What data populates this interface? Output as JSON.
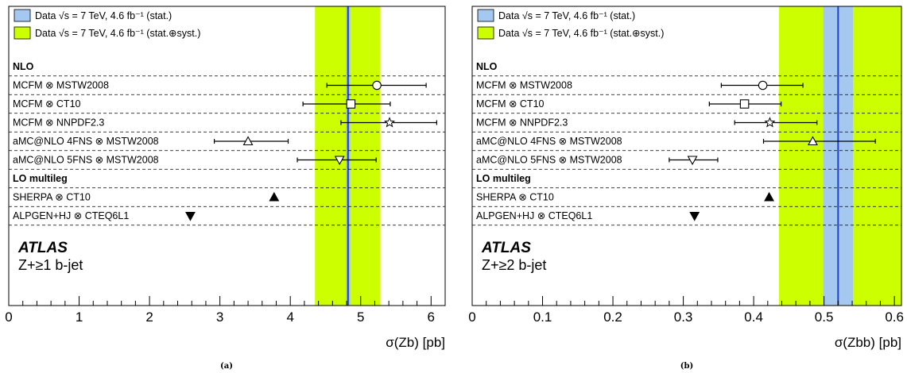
{
  "chart_data": [
    {
      "type": "scatter",
      "caption": "(a)",
      "xlabel": "σ(Zb) [pb]",
      "xlim": [
        0,
        6.2
      ],
      "xticks": [
        "0",
        "1",
        "2",
        "3",
        "4",
        "5",
        "6"
      ],
      "experiment": "ATLAS",
      "subtitle": "Z+≥1 b-jet",
      "legend": [
        {
          "label": "Data √s = 7 TeV, 4.6 fb⁻¹ (stat.)",
          "color": "#a4c8f0"
        },
        {
          "label": "Data √s = 7 TeV, 4.6 fb⁻¹ (stat.⊕syst.)",
          "color": "#ccff00"
        }
      ],
      "data": {
        "value": 4.82,
        "stat": [
          4.79,
          4.85
        ],
        "total": [
          4.35,
          5.28
        ],
        "line_color": "#1f3fcc"
      },
      "sections": [
        {
          "header": "NLO",
          "rows": [
            {
              "label": "MCFM ⊗ MSTW2008",
              "value": 5.23,
              "err": [
                4.52,
                5.93
              ],
              "marker": "circle-open"
            },
            {
              "label": "MCFM ⊗ CT10",
              "value": 4.86,
              "err": [
                4.18,
                5.42
              ],
              "marker": "square-open"
            },
            {
              "label": "MCFM ⊗ NNPDF2.3",
              "value": 5.41,
              "err": [
                4.72,
                6.08
              ],
              "marker": "star-open"
            },
            {
              "label": "aMC@NLO 4FNS ⊗ MSTW2008",
              "value": 3.4,
              "err": [
                2.92,
                3.97
              ],
              "marker": "triangle-up-open"
            },
            {
              "label": "aMC@NLO 5FNS ⊗ MSTW2008",
              "value": 4.7,
              "err": [
                4.1,
                5.22
              ],
              "marker": "triangle-down-open"
            }
          ]
        },
        {
          "header": "LO multileg",
          "rows": [
            {
              "label": "SHERPA ⊗ CT10",
              "value": 3.77,
              "marker": "triangle-up-filled"
            },
            {
              "label": "ALPGEN+HJ ⊗ CTEQ6L1",
              "value": 2.58,
              "marker": "triangle-down-filled"
            }
          ]
        }
      ]
    },
    {
      "type": "scatter",
      "caption": "(b)",
      "xlabel": "σ(Zbb) [pb]",
      "xlim": [
        0,
        0.61
      ],
      "xticks": [
        "0",
        "0.1",
        "0.2",
        "0.3",
        "0.4",
        "0.5",
        "0.6"
      ],
      "experiment": "ATLAS",
      "subtitle": "Z+≥2 b-jet",
      "legend": [
        {
          "label": "Data √s = 7 TeV, 4.6 fb⁻¹ (stat.)",
          "color": "#a4c8f0"
        },
        {
          "label": "Data √s = 7 TeV, 4.6 fb⁻¹ (stat.⊕syst.)",
          "color": "#ccff00"
        }
      ],
      "data": {
        "value": 0.52,
        "stat": [
          0.499,
          0.541
        ],
        "total": [
          0.436,
          0.61
        ],
        "line_color": "#1f3fcc"
      },
      "sections": [
        {
          "header": "NLO",
          "rows": [
            {
              "label": "MCFM ⊗ MSTW2008",
              "value": 0.413,
              "err": [
                0.354,
                0.47
              ],
              "marker": "circle-open"
            },
            {
              "label": "MCFM ⊗ CT10",
              "value": 0.387,
              "err": [
                0.337,
                0.439
              ],
              "marker": "square-open"
            },
            {
              "label": "MCFM ⊗ NNPDF2.3",
              "value": 0.423,
              "err": [
                0.373,
                0.49
              ],
              "marker": "star-open"
            },
            {
              "label": "aMC@NLO 4FNS ⊗ MSTW2008",
              "value": 0.484,
              "err": [
                0.414,
                0.573
              ],
              "marker": "triangle-up-open"
            },
            {
              "label": "aMC@NLO 5FNS ⊗ MSTW2008",
              "value": 0.313,
              "err": [
                0.28,
                0.349
              ],
              "marker": "triangle-down-open"
            }
          ]
        },
        {
          "header": "LO multileg",
          "rows": [
            {
              "label": "SHERPA ⊗ CT10",
              "value": 0.422,
              "marker": "triangle-up-filled"
            },
            {
              "label": "ALPGEN+HJ ⊗ CTEQ6L1",
              "value": 0.316,
              "marker": "triangle-down-filled"
            }
          ]
        }
      ]
    }
  ]
}
